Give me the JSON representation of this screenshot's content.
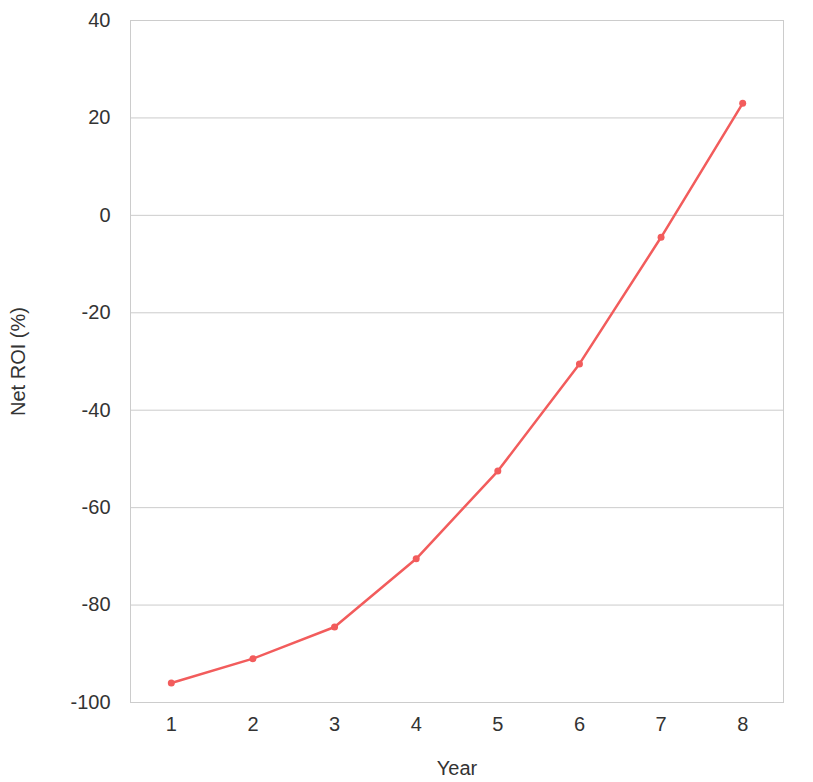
{
  "chart_data": {
    "type": "line",
    "x": [
      1,
      2,
      3,
      4,
      5,
      6,
      7,
      8
    ],
    "values": [
      -96,
      -91,
      -84.5,
      -70.5,
      -52.5,
      -30.5,
      -4.5,
      23
    ],
    "color": "#f25c5c",
    "marker": "circle",
    "x_label": "Year",
    "y_label": "Net ROI (%)",
    "xlim": [
      0.5,
      8.5
    ],
    "xticks": [
      1,
      2,
      3,
      4,
      5,
      6,
      7,
      8
    ],
    "ylim": [
      -100,
      40
    ],
    "yticks": [
      -100,
      -80,
      -60,
      -40,
      -20,
      0,
      20,
      40
    ],
    "grid": true
  }
}
